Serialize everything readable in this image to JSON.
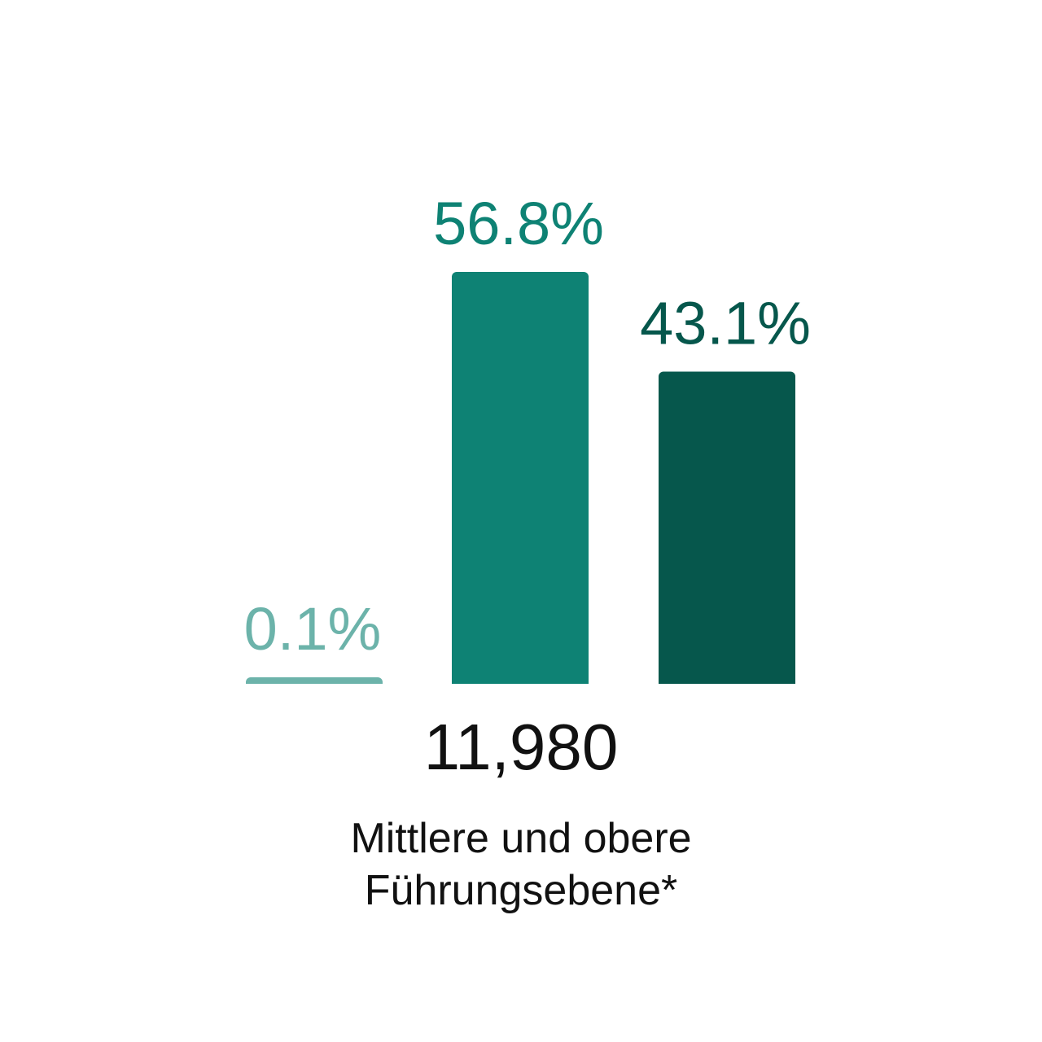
{
  "chart_data": {
    "type": "bar",
    "categories": [
      "",
      "",
      ""
    ],
    "values": [
      0.1,
      56.8,
      43.1
    ],
    "value_labels": [
      "0.1%",
      "56.8%",
      "43.1%"
    ],
    "colors": [
      "#6cb3aa",
      "#0e8274",
      "#06574c"
    ],
    "ylim": [
      0,
      56.8
    ],
    "grid": false,
    "baseline_color": "#dddddd",
    "total": "11,980",
    "category_label_line1": "Mittlere und obere",
    "category_label_line2": "Führungsebene*"
  }
}
